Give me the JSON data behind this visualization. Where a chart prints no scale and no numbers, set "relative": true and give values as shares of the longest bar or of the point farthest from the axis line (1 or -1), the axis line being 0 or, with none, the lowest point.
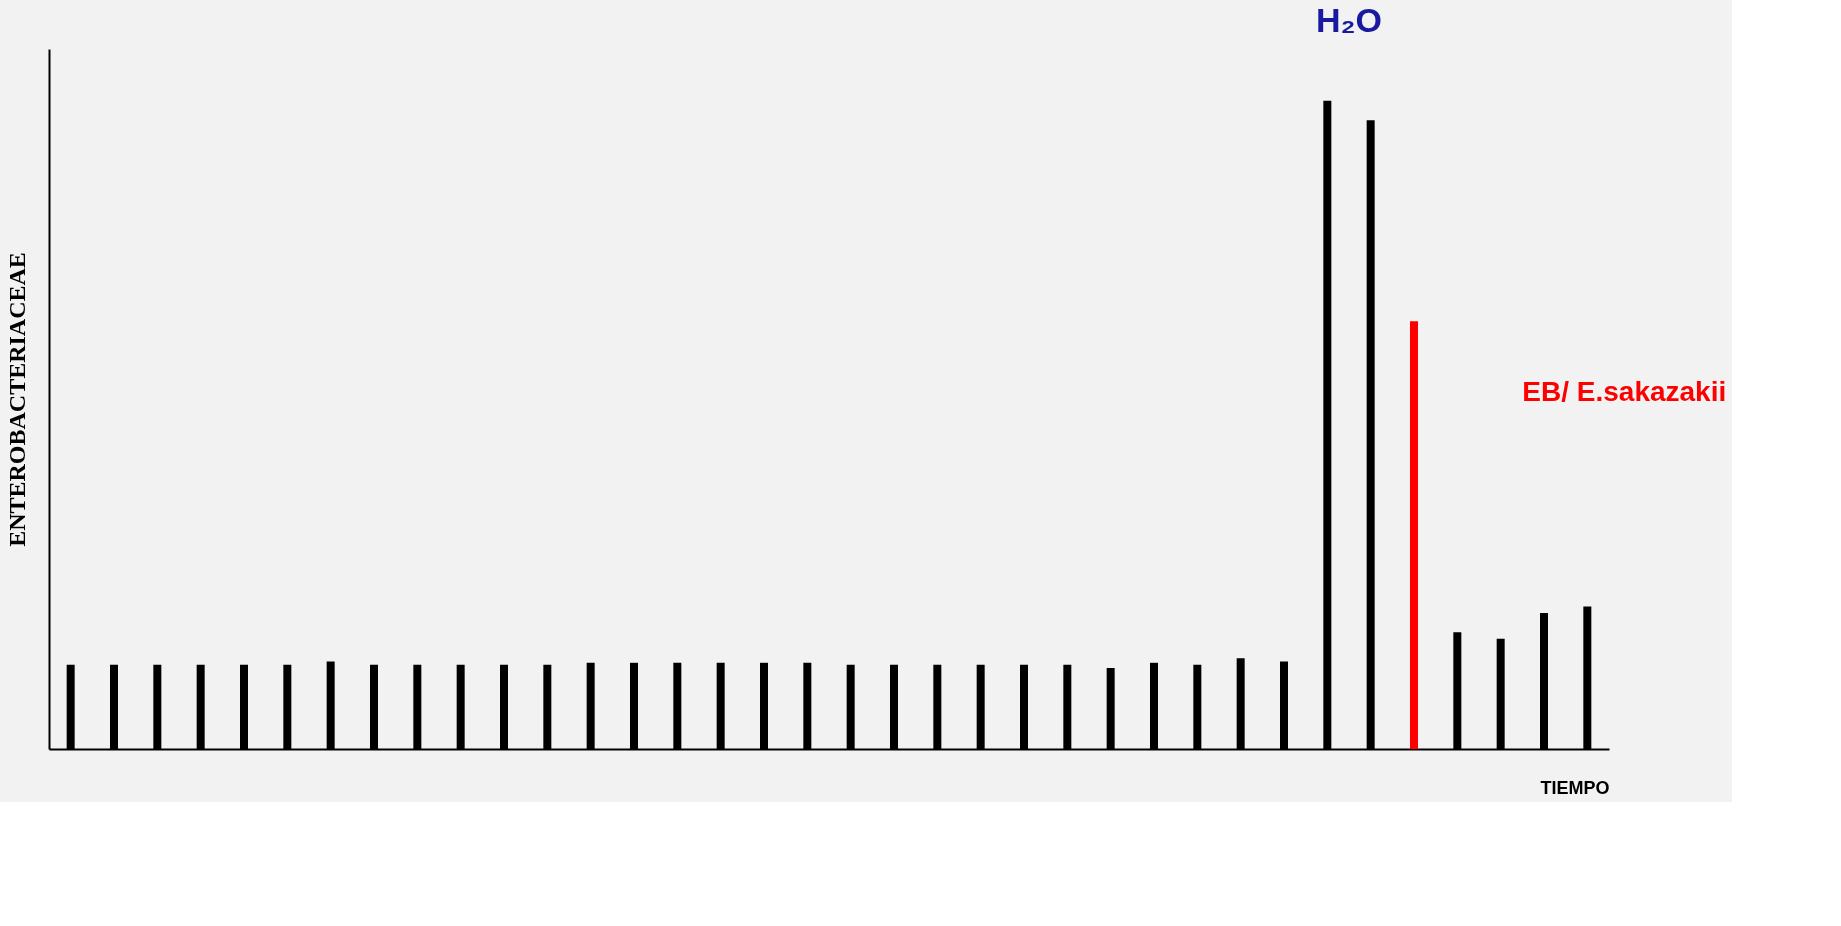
{
  "chart_data": {
    "type": "bar",
    "relative": true,
    "xlabel": "TIEMPO",
    "ylabel": "ENTEROBACTERIACEAE",
    "tick_labels": false,
    "grid": false,
    "categories": [
      null,
      null,
      null,
      null,
      null,
      null,
      null,
      null,
      null,
      null,
      null,
      null,
      null,
      null,
      null,
      null,
      null,
      null,
      null,
      null,
      null,
      null,
      null,
      null,
      null,
      null,
      null,
      null,
      null,
      null,
      null,
      null,
      null,
      null,
      null,
      null
    ],
    "values": [
      0.13,
      0.13,
      0.13,
      0.13,
      0.13,
      0.13,
      0.135,
      0.13,
      0.13,
      0.13,
      0.13,
      0.13,
      0.133,
      0.133,
      0.133,
      0.133,
      0.133,
      0.133,
      0.13,
      0.13,
      0.13,
      0.13,
      0.13,
      0.13,
      0.125,
      0.133,
      0.13,
      0.14,
      0.135,
      1.0,
      0.97,
      0.66,
      0.18,
      0.17,
      0.21,
      0.22
    ],
    "colors": [
      "#000000",
      "#000000",
      "#000000",
      "#000000",
      "#000000",
      "#000000",
      "#000000",
      "#000000",
      "#000000",
      "#000000",
      "#000000",
      "#000000",
      "#000000",
      "#000000",
      "#000000",
      "#000000",
      "#000000",
      "#000000",
      "#000000",
      "#000000",
      "#000000",
      "#000000",
      "#000000",
      "#000000",
      "#000000",
      "#000000",
      "#000000",
      "#000000",
      "#000000",
      "#000000",
      "#000000",
      "#ff0000",
      "#000000",
      "#000000",
      "#000000",
      "#000000"
    ],
    "annotations": [
      "H₂O",
      "EB/ E.sakazakii"
    ]
  }
}
